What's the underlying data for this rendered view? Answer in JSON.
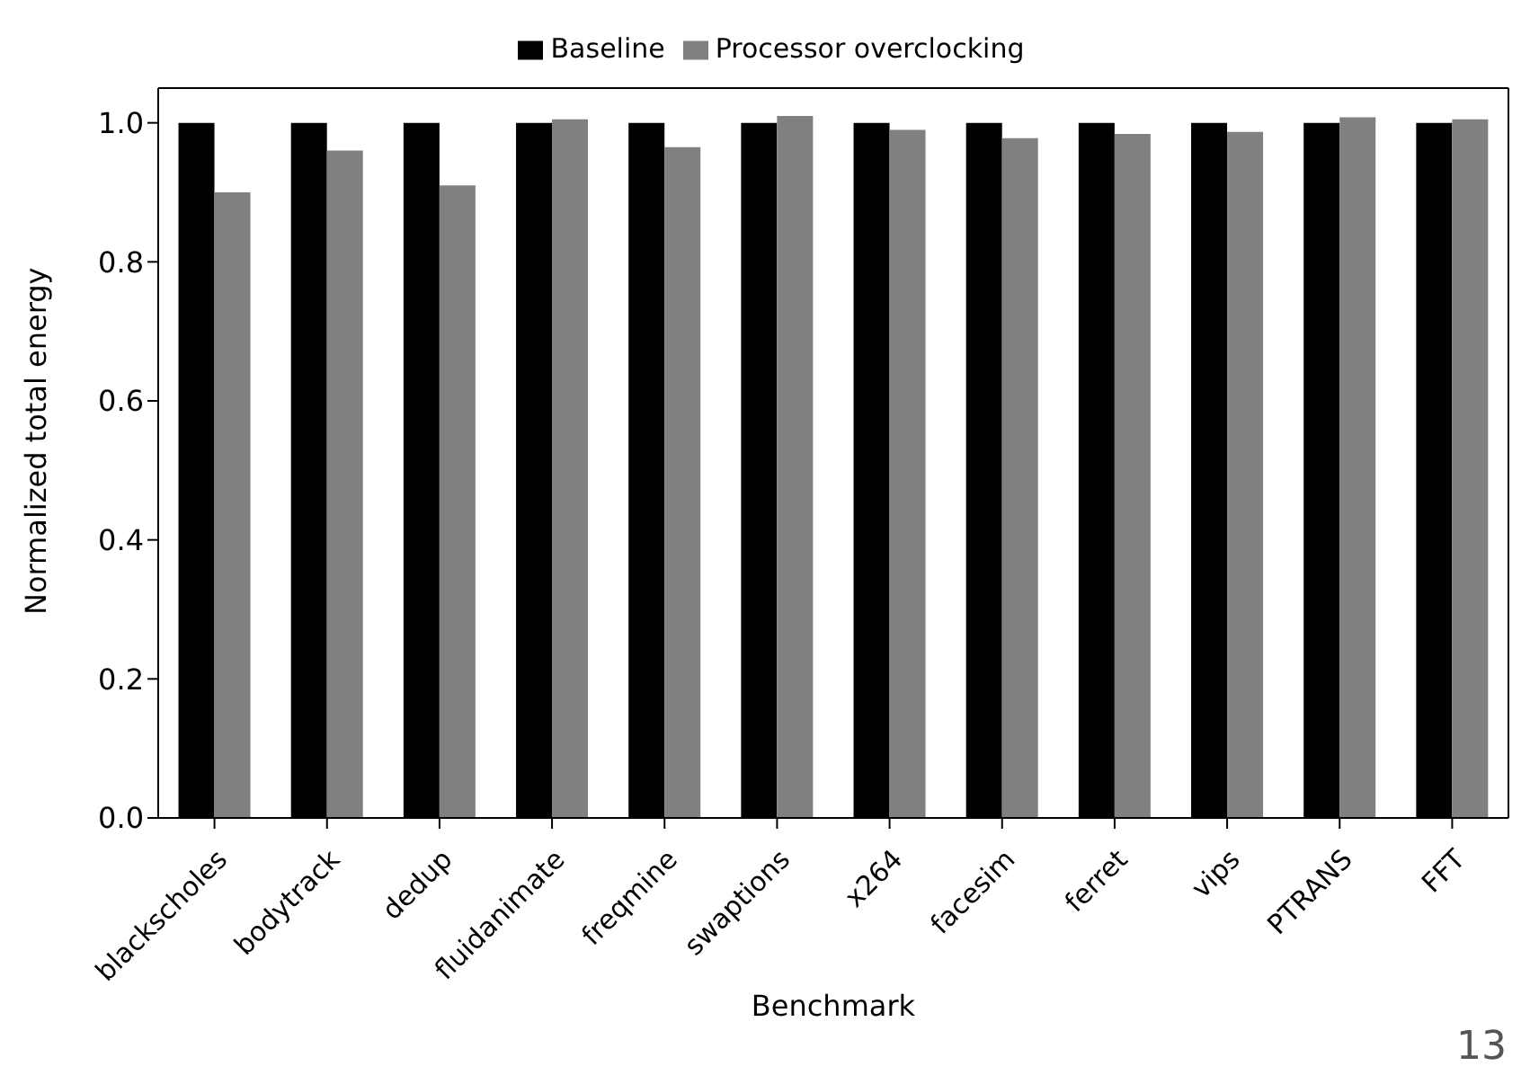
{
  "chart_data": {
    "type": "bar",
    "xlabel": "Benchmark",
    "ylabel": "Normalized total energy",
    "categories": [
      "blackscholes",
      "bodytrack",
      "dedup",
      "fluidanimate",
      "freqmine",
      "swaptions",
      "x264",
      "facesim",
      "ferret",
      "vips",
      "PTRANS",
      "FFT"
    ],
    "series": [
      {
        "name": "Baseline",
        "color": "#000000",
        "values": [
          1,
          1,
          1,
          1,
          1,
          1,
          1,
          1,
          1,
          1,
          1,
          1
        ]
      },
      {
        "name": "Processor overclocking",
        "color": "#808080",
        "values": [
          0.9,
          0.96,
          0.91,
          1.005,
          0.965,
          1.01,
          0.99,
          0.978,
          0.984,
          0.987,
          1.008,
          1.005
        ]
      }
    ],
    "ylim": [
      0,
      1.05
    ],
    "yticks": [
      {
        "value": 0,
        "label": "0.0"
      },
      0.2,
      0.4,
      0.6,
      0.8,
      {
        "value": 1,
        "label": "1.0"
      }
    ],
    "grid": false,
    "legend": "top",
    "annotations": [
      "13"
    ]
  }
}
